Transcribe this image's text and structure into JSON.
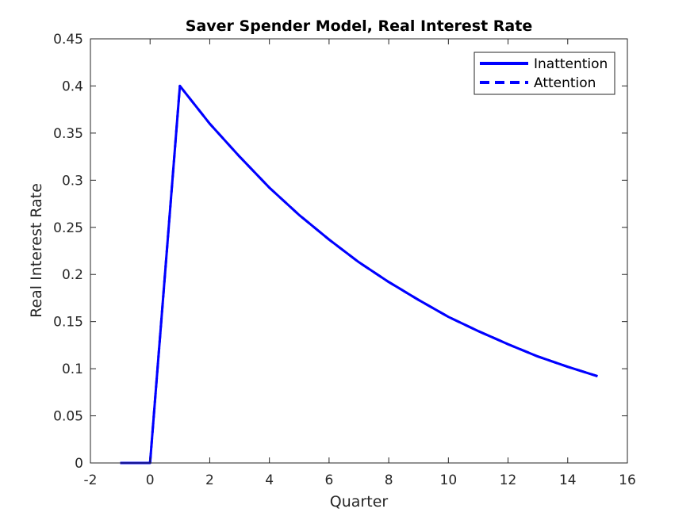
{
  "chart_data": {
    "type": "line",
    "title": "Saver Spender Model, Real Interest Rate",
    "xlabel": "Quarter",
    "ylabel": "Real Interest Rate",
    "xlim": [
      -2,
      16
    ],
    "ylim": [
      0,
      0.45
    ],
    "xticks": [
      -2,
      0,
      2,
      4,
      6,
      8,
      10,
      12,
      14,
      16
    ],
    "xtick_labels": [
      "-2",
      "0",
      "2",
      "4",
      "6",
      "8",
      "10",
      "12",
      "14",
      "16"
    ],
    "yticks": [
      0,
      0.05,
      0.1,
      0.15,
      0.2,
      0.25,
      0.3,
      0.35,
      0.4,
      0.45
    ],
    "ytick_labels": [
      "0",
      "0.05",
      "0.1",
      "0.15",
      "0.2",
      "0.25",
      "0.3",
      "0.35",
      "0.4",
      "0.45"
    ],
    "grid": false,
    "legend_position": "top-right",
    "x": [
      -1,
      0,
      1,
      2,
      3,
      4,
      5,
      6,
      7,
      8,
      9,
      10,
      11,
      12,
      13,
      14,
      15
    ],
    "series": [
      {
        "name": "Inattention",
        "style": "solid",
        "color": "#0000ff",
        "values": [
          0,
          0,
          0.4,
          0.36,
          0.325,
          0.292,
          0.263,
          0.237,
          0.213,
          0.192,
          0.173,
          0.155,
          0.14,
          0.126,
          0.113,
          0.102,
          0.092
        ]
      },
      {
        "name": "Attention",
        "style": "dashed",
        "color": "#0000ff",
        "values": [
          0,
          0,
          0.4,
          0.36,
          0.325,
          0.292,
          0.263,
          0.237,
          0.213,
          0.192,
          0.173,
          0.155,
          0.14,
          0.126,
          0.113,
          0.102,
          0.092
        ]
      }
    ]
  }
}
